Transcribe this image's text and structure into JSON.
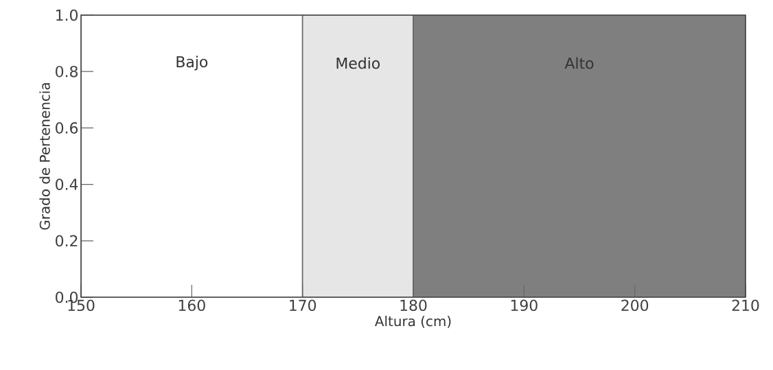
{
  "chart_data": {
    "type": "area",
    "xlabel": "Altura (cm)",
    "ylabel": "Grado de Pertenencia",
    "xlim": [
      150,
      210
    ],
    "ylim": [
      0,
      1
    ],
    "xticks": [
      150,
      160,
      170,
      180,
      190,
      200,
      210
    ],
    "yticks": [
      {
        "value": 0,
        "label": "0.0"
      },
      0.2,
      0.4,
      0.6,
      0.8,
      {
        "value": 1,
        "label": "1.0"
      }
    ],
    "series": [
      {
        "name": "Bajo",
        "color": "#ffffff",
        "x": [
          150,
          170
        ],
        "values": [
          1,
          1
        ]
      },
      {
        "name": "Medio",
        "color": "#e6e6e6",
        "x": [
          170,
          180
        ],
        "values": [
          1,
          1
        ]
      },
      {
        "name": "Alto",
        "color": "#7f7f7f",
        "x": [
          180,
          210
        ],
        "values": [
          1,
          1
        ]
      }
    ]
  }
}
